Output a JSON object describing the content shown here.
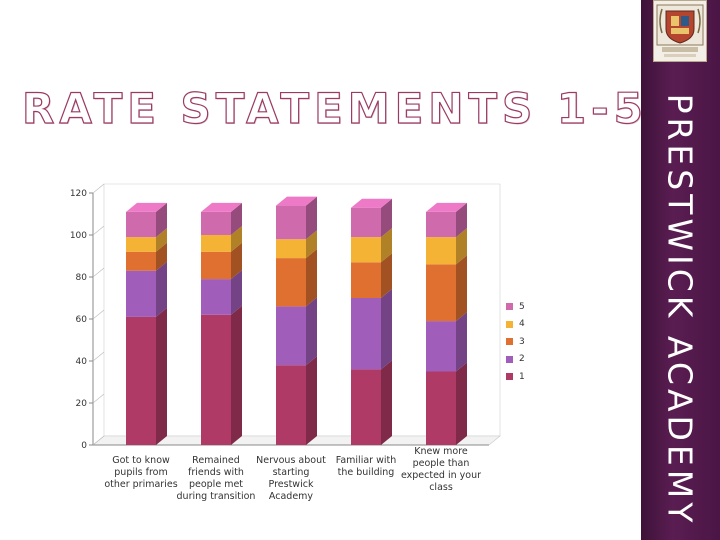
{
  "slide": {
    "title": "RATE STATEMENTS 1-5?",
    "side_title": "PRESTWICK ACADEMY"
  },
  "colors": {
    "band": "#4a1645",
    "title_outline": "#9b3a63"
  },
  "chart_data": {
    "type": "bar",
    "stacked": true,
    "three_d": true,
    "categories": [
      "Got to know pupils from other primaries",
      "Remained friends with people met during transition",
      "Nervous about starting Prestwick Academy",
      "Familiar with the building",
      "Knew more people than expected in your class"
    ],
    "category_display": [
      "Got to know\npupils from\nother primaries",
      "Remained\nfriends with\npeople met\nduring transition",
      "Nervous about\nstarting\nPrestwick\nAcademy",
      "Familiar with\nthe building",
      "Knew more\npeople than\nexpected in your\nclass"
    ],
    "series": [
      {
        "name": "1",
        "color": "#b03a66",
        "values": [
          61,
          62,
          38,
          36,
          35
        ]
      },
      {
        "name": "2",
        "color": "#a05dba",
        "values": [
          22,
          17,
          28,
          34,
          24
        ]
      },
      {
        "name": "3",
        "color": "#e0702f",
        "values": [
          9,
          13,
          23,
          17,
          27
        ]
      },
      {
        "name": "4",
        "color": "#f5b335",
        "values": [
          7,
          8,
          9,
          12,
          13
        ]
      },
      {
        "name": "5",
        "color": "#cf6aad",
        "values": [
          12,
          11,
          16,
          14,
          12
        ]
      }
    ],
    "legend_order": [
      "5",
      "4",
      "3",
      "2",
      "1"
    ],
    "legend_position": "right",
    "yticks": [
      0,
      20,
      40,
      60,
      80,
      100,
      120
    ],
    "ylim": [
      0,
      120
    ],
    "grid": false
  }
}
